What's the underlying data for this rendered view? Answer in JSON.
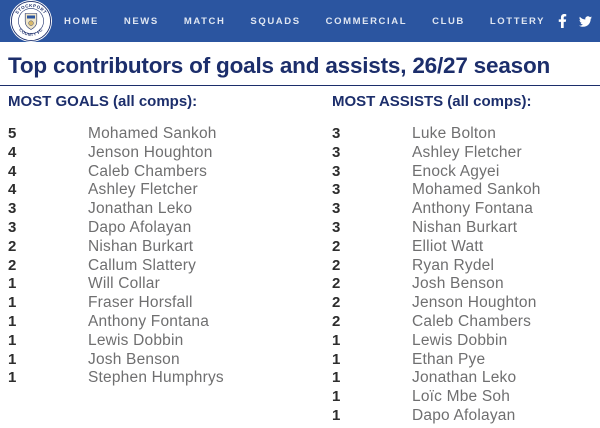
{
  "navbar": {
    "logo": {
      "club": "Stockport County FC",
      "ring_top": "STOCKPORT",
      "ring_bottom": "COUNTY FC"
    },
    "items": [
      {
        "label": "HOME"
      },
      {
        "label": "NEWS"
      },
      {
        "label": "MATCH"
      },
      {
        "label": "SQUADS"
      },
      {
        "label": "COMMERCIAL"
      },
      {
        "label": "CLUB"
      },
      {
        "label": "LOTTERY"
      }
    ],
    "social": [
      {
        "name": "facebook"
      },
      {
        "name": "twitter"
      },
      {
        "name": "instagram"
      },
      {
        "name": "youtube"
      }
    ]
  },
  "page": {
    "title": "Top contributors of goals and assists, 26/27 season"
  },
  "lists": {
    "goals": {
      "heading": "MOST GOALS (all comps):",
      "rows": [
        {
          "value": "5",
          "name": "Mohamed Sankoh"
        },
        {
          "value": "4",
          "name": "Jenson Houghton"
        },
        {
          "value": "4",
          "name": "Caleb Chambers"
        },
        {
          "value": "4",
          "name": "Ashley Fletcher"
        },
        {
          "value": "3",
          "name": "Jonathan Leko"
        },
        {
          "value": "3",
          "name": "Dapo Afolayan"
        },
        {
          "value": "2",
          "name": "Nishan Burkart"
        },
        {
          "value": "2",
          "name": "Callum Slattery"
        },
        {
          "value": "1",
          "name": "Will Collar"
        },
        {
          "value": "1",
          "name": "Fraser Horsfall"
        },
        {
          "value": "1",
          "name": "Anthony Fontana"
        },
        {
          "value": "1",
          "name": "Lewis Dobbin"
        },
        {
          "value": "1",
          "name": "Josh Benson"
        },
        {
          "value": "1",
          "name": "Stephen Humphrys"
        }
      ]
    },
    "assists": {
      "heading": "MOST ASSISTS (all comps):",
      "rows": [
        {
          "value": "3",
          "name": "Luke Bolton"
        },
        {
          "value": "3",
          "name": "Ashley Fletcher"
        },
        {
          "value": "3",
          "name": "Enock Agyei"
        },
        {
          "value": "3",
          "name": "Mohamed Sankoh"
        },
        {
          "value": "3",
          "name": "Anthony Fontana"
        },
        {
          "value": "3",
          "name": "Nishan Burkart"
        },
        {
          "value": "2",
          "name": "Elliot Watt"
        },
        {
          "value": "2",
          "name": "Ryan Rydel"
        },
        {
          "value": "2",
          "name": "Josh Benson"
        },
        {
          "value": "2",
          "name": "Jenson Houghton"
        },
        {
          "value": "2",
          "name": "Caleb Chambers"
        },
        {
          "value": "1",
          "name": "Lewis Dobbin"
        },
        {
          "value": "1",
          "name": "Ethan Pye"
        },
        {
          "value": "1",
          "name": "Jonathan Leko"
        },
        {
          "value": "1",
          "name": "Loïc Mbe Soh"
        },
        {
          "value": "1",
          "name": "Dapo Afolayan"
        }
      ]
    }
  },
  "colors": {
    "navbar_bg": "#2b55a0",
    "nav_text": "#dfe6f2",
    "heading_navy": "#1c2e6b",
    "divider": "#1c2e6b",
    "stat_number": "#2d2d2d",
    "player_name": "#6f6f70",
    "crest_gold": "#d9b96a"
  }
}
